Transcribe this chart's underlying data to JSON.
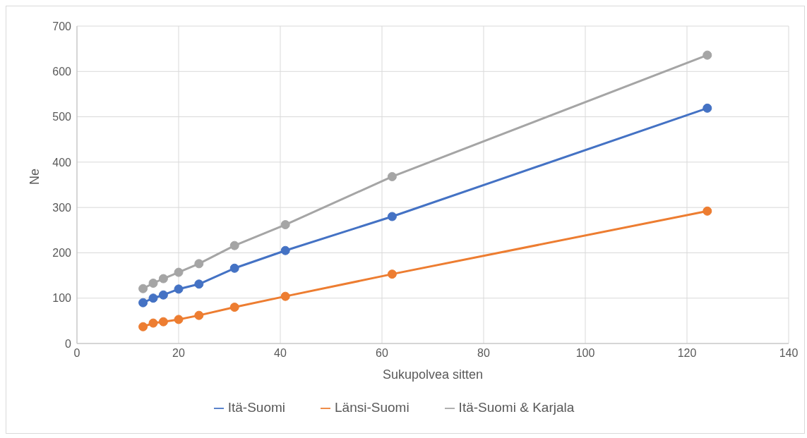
{
  "chart_data": {
    "type": "line",
    "xlabel": "Sukupolvea sitten",
    "ylabel": "Ne",
    "x": [
      13,
      15,
      17,
      20,
      24,
      31,
      41,
      62,
      124
    ],
    "series": [
      {
        "name": "Itä-Suomi",
        "color": "#4472c4",
        "values": [
          90,
          100,
          107,
          120,
          131,
          166,
          205,
          280,
          519
        ]
      },
      {
        "name": "Länsi-Suomi",
        "color": "#ed7d31",
        "values": [
          37,
          45,
          48,
          53,
          62,
          80,
          104,
          153,
          292
        ]
      },
      {
        "name": "Itä-Suomi & Karjala",
        "color": "#a5a5a5",
        "values": [
          121,
          133,
          143,
          157,
          176,
          216,
          262,
          368,
          636
        ]
      }
    ],
    "xlim": [
      0,
      140
    ],
    "xticks": [
      0,
      20,
      40,
      60,
      80,
      100,
      120,
      140
    ],
    "ylim": [
      0,
      700
    ],
    "yticks": [
      0,
      100,
      200,
      300,
      400,
      500,
      600,
      700
    ],
    "grid": true,
    "legend": "bottom",
    "marker": "circle",
    "line_style": "solid"
  }
}
